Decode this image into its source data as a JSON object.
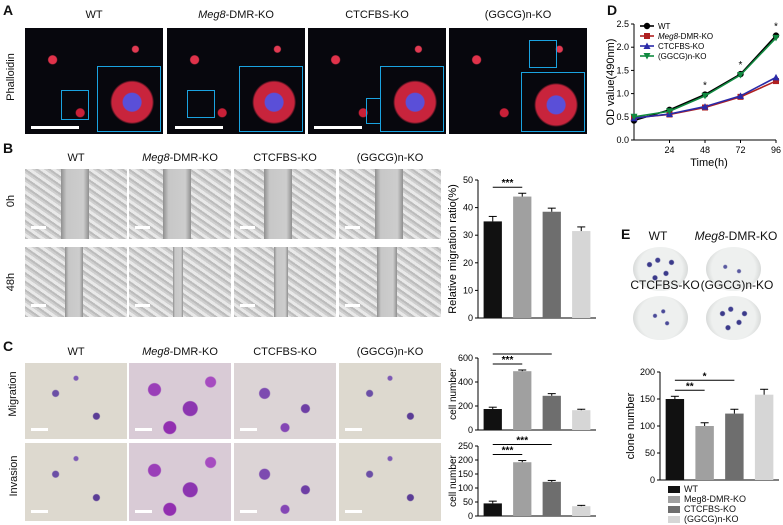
{
  "panels": {
    "A": "A",
    "B": "B",
    "C": "C",
    "D": "D",
    "E": "E"
  },
  "groups": [
    "WT",
    "Meg8-DMR-KO",
    "CTCFBS-KO",
    "(GGCG)n-KO"
  ],
  "group_italic_prefix": "Meg8",
  "group_rest": "-DMR-KO",
  "rows": {
    "phalloidin": "Phalloidin",
    "h0": "0h",
    "h48": "48h",
    "migration": "Migration",
    "invasion": "Invasion"
  },
  "colors": {
    "wt": "#111111",
    "meg8": "#a0a0a0",
    "ctcf": "#6e6e6e",
    "ggcg": "#d6d6d6",
    "d_wt": "#000000",
    "d_meg8": "#b02020",
    "d_ctcf": "#2a2aa8",
    "d_ggcg": "#108a40"
  },
  "legendE": [
    "WT",
    "Meg8-DMR-KO",
    "CTCFBS-KO",
    "(GGCG)n-KO"
  ],
  "chart_data": [
    {
      "id": "B-migration",
      "type": "bar",
      "categories": [
        "WT",
        "Meg8-DMR-KO",
        "CTCFBS-KO",
        "(GGCG)n-KO"
      ],
      "values": [
        35,
        44,
        38.5,
        31.5
      ],
      "errors": [
        1.8,
        1.2,
        1.3,
        1.5
      ],
      "ylabel": "Relative migration ratio(%)",
      "ylim": [
        0,
        50
      ],
      "yticks": [
        0,
        10,
        20,
        30,
        40,
        50
      ],
      "annotations": [
        {
          "from": 0,
          "to": 1,
          "text": "***"
        }
      ]
    },
    {
      "id": "C-migration",
      "type": "bar",
      "categories": [
        "WT",
        "Meg8-DMR-KO",
        "CTCFBS-KO",
        "(GGCG)n-KO"
      ],
      "values": [
        175,
        490,
        285,
        165
      ],
      "errors": [
        15,
        10,
        18,
        8
      ],
      "ylabel": "cell number",
      "ylim": [
        0,
        600
      ],
      "yticks": [
        0,
        200,
        400,
        600
      ],
      "annotations": [
        {
          "from": 0,
          "to": 1,
          "text": "***"
        },
        {
          "from": 0,
          "to": 2,
          "text": "***"
        }
      ]
    },
    {
      "id": "C-invasion",
      "type": "bar",
      "categories": [
        "WT",
        "Meg8-DMR-KO",
        "CTCFBS-KO",
        "(GGCG)n-KO"
      ],
      "values": [
        45,
        192,
        122,
        35
      ],
      "errors": [
        8,
        6,
        5,
        3
      ],
      "ylabel": "cell number",
      "ylim": [
        0,
        250
      ],
      "yticks": [
        0,
        50,
        100,
        150,
        200,
        250
      ],
      "annotations": [
        {
          "from": 0,
          "to": 1,
          "text": "***"
        },
        {
          "from": 0,
          "to": 2,
          "text": "***"
        }
      ]
    },
    {
      "id": "D-growth",
      "type": "line",
      "x": [
        0,
        24,
        48,
        72,
        96
      ],
      "xticks": [
        24,
        48,
        72,
        96
      ],
      "xlabel": "Time(h)",
      "ylabel": "OD value(490nm)",
      "ylim": [
        0,
        2.5
      ],
      "yticks": [
        0.0,
        0.5,
        1.0,
        1.5,
        2.0,
        2.5
      ],
      "series": [
        {
          "name": "WT",
          "values": [
            0.42,
            0.65,
            0.98,
            1.42,
            2.25
          ]
        },
        {
          "name": "Meg8-DMR-KO",
          "values": [
            0.48,
            0.55,
            0.7,
            0.93,
            1.27
          ]
        },
        {
          "name": "CTCFBS-KO",
          "values": [
            0.47,
            0.56,
            0.72,
            0.95,
            1.35
          ]
        },
        {
          "name": "(GGCG)n-KO",
          "values": [
            0.5,
            0.62,
            0.95,
            1.4,
            2.2
          ]
        }
      ],
      "annotations": [
        {
          "x": 48,
          "text": "*"
        },
        {
          "x": 72,
          "text": "*"
        },
        {
          "x": 96,
          "text": "*"
        }
      ]
    },
    {
      "id": "E-clone",
      "type": "bar",
      "categories": [
        "WT",
        "Meg8-DMR-KO",
        "CTCFBS-KO",
        "(GGCG)n-KO"
      ],
      "values": [
        150,
        100,
        123,
        158
      ],
      "errors": [
        5,
        6,
        8,
        10
      ],
      "ylabel": "clone number",
      "ylim": [
        0,
        200
      ],
      "yticks": [
        0,
        50,
        100,
        150,
        200
      ],
      "annotations": [
        {
          "from": 0,
          "to": 1,
          "text": "**"
        },
        {
          "from": 0,
          "to": 2,
          "text": "*"
        }
      ]
    }
  ]
}
